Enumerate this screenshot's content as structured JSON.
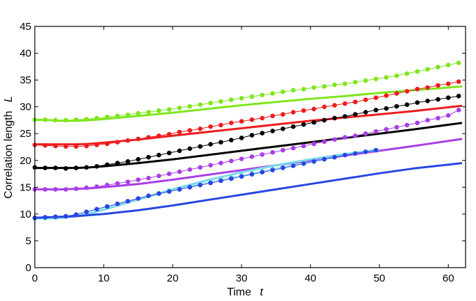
{
  "chart_data": {
    "type": "line",
    "xlabel": "Time",
    "xlabel_symbol": "t",
    "ylabel": "Correlation length",
    "ylabel_symbol": "L",
    "xlim": [
      0,
      62.5
    ],
    "ylim": [
      0,
      45
    ],
    "xticks": [
      0,
      10,
      20,
      30,
      40,
      50,
      60
    ],
    "yticks": [
      0,
      5,
      10,
      15,
      20,
      25,
      30,
      35,
      40,
      45
    ],
    "grid": false,
    "series": [
      {
        "color": "#7fe61e",
        "curve": {
          "x": [
            0,
            2,
            4,
            6,
            8,
            10,
            15,
            20,
            25,
            30,
            35,
            40,
            45,
            50,
            55,
            62
          ],
          "y": [
            27.6,
            27.5,
            27.4,
            27.4,
            27.5,
            27.7,
            28.3,
            28.9,
            29.6,
            30.3,
            30.9,
            31.5,
            32.0,
            32.6,
            33.1,
            33.8
          ]
        },
        "points": {
          "x": [
            0,
            1.5,
            3,
            4.5,
            6,
            7.5,
            9,
            10.5,
            12,
            13.5,
            15,
            16.5,
            18,
            19.5,
            21,
            22.5,
            24,
            25.5,
            27,
            28.5,
            30,
            31.5,
            33,
            34.5,
            36,
            37.5,
            39,
            40.5,
            42,
            43.5,
            45,
            46.5,
            48,
            49.5,
            51,
            52.5,
            54,
            55.5,
            57,
            58.5,
            60,
            61.5
          ],
          "y": [
            27.6,
            27.6,
            27.5,
            27.5,
            27.6,
            27.7,
            27.9,
            28.1,
            28.3,
            28.5,
            28.8,
            29.0,
            29.3,
            29.5,
            29.8,
            30.1,
            30.4,
            30.7,
            31.0,
            31.3,
            31.6,
            31.9,
            32.2,
            32.5,
            32.8,
            33.1,
            33.3,
            33.6,
            33.8,
            34.1,
            34.3,
            34.6,
            34.9,
            35.2,
            35.5,
            35.8,
            36.2,
            36.6,
            37.0,
            37.4,
            37.8,
            38.2
          ]
        }
      },
      {
        "color": "#ee1c1c",
        "curve": {
          "x": [
            0,
            2,
            4,
            6,
            8,
            10,
            15,
            20,
            25,
            30,
            35,
            40,
            45,
            50,
            55,
            62
          ],
          "y": [
            23.0,
            23.0,
            23.0,
            23.0,
            23.1,
            23.3,
            23.9,
            24.6,
            25.3,
            26.0,
            26.7,
            27.4,
            28.0,
            28.6,
            29.2,
            30.2
          ]
        },
        "points": {
          "x": [
            0,
            1.5,
            3,
            4.5,
            6,
            7.5,
            9,
            10.5,
            12,
            13.5,
            15,
            16.5,
            18,
            19.5,
            21,
            22.5,
            24,
            25.5,
            27,
            28.5,
            30,
            31.5,
            33,
            34.5,
            36,
            37.5,
            39,
            40.5,
            42,
            43.5,
            45,
            46.5,
            48,
            49.5,
            51,
            52.5,
            54,
            55.5,
            57,
            58.5,
            60,
            61.5
          ],
          "y": [
            22.9,
            22.8,
            22.7,
            22.6,
            22.6,
            22.7,
            22.9,
            23.1,
            23.4,
            23.7,
            24.0,
            24.3,
            24.6,
            24.9,
            25.3,
            25.6,
            25.9,
            26.3,
            26.6,
            27.0,
            27.3,
            27.6,
            27.9,
            28.3,
            28.6,
            29.0,
            29.3,
            29.6,
            30.0,
            30.3,
            30.6,
            30.9,
            31.3,
            31.7,
            32.1,
            32.5,
            32.9,
            33.3,
            33.6,
            34.0,
            34.3,
            34.7
          ]
        }
      },
      {
        "color": "#000000",
        "curve": {
          "x": [
            0,
            2,
            4,
            6,
            8,
            10,
            15,
            20,
            25,
            30,
            35,
            40,
            45,
            50,
            55,
            62
          ],
          "y": [
            18.6,
            18.6,
            18.6,
            18.6,
            18.7,
            18.9,
            19.5,
            20.2,
            21.0,
            21.8,
            22.6,
            23.4,
            24.2,
            25.0,
            25.8,
            27.0
          ]
        },
        "points": {
          "x": [
            0,
            1.5,
            3,
            4.5,
            6,
            7.5,
            9,
            10.5,
            12,
            13.5,
            15,
            16.5,
            18,
            19.5,
            21,
            22.5,
            24,
            25.5,
            27,
            28.5,
            30,
            31.5,
            33,
            34.5,
            36,
            37.5,
            39,
            40.5,
            42,
            43.5,
            45,
            46.5,
            48,
            49.5,
            51,
            52.5,
            54,
            55.5,
            57,
            58.5,
            60,
            61.5
          ],
          "y": [
            18.7,
            18.6,
            18.6,
            18.5,
            18.6,
            18.7,
            18.9,
            19.2,
            19.5,
            19.8,
            20.2,
            20.6,
            21.0,
            21.4,
            21.8,
            22.2,
            22.6,
            23.0,
            23.4,
            23.8,
            24.2,
            24.7,
            25.1,
            25.5,
            25.9,
            26.3,
            26.7,
            27.1,
            27.5,
            27.9,
            28.2,
            28.6,
            29.0,
            29.4,
            29.7,
            30.1,
            30.4,
            30.8,
            31.1,
            31.4,
            31.7,
            32.0
          ]
        }
      },
      {
        "color": "#a93ee6",
        "curve": {
          "x": [
            0,
            2,
            4,
            6,
            8,
            10,
            15,
            20,
            25,
            30,
            35,
            40,
            45,
            50,
            55,
            62
          ],
          "y": [
            14.6,
            14.6,
            14.6,
            14.7,
            14.8,
            15.0,
            15.6,
            16.4,
            17.3,
            18.2,
            19.1,
            20.0,
            20.9,
            21.8,
            22.7,
            24.0
          ]
        },
        "points": {
          "x": [
            0,
            1.5,
            3,
            4.5,
            6,
            7.5,
            9,
            10.5,
            12,
            13.5,
            15,
            16.5,
            18,
            19.5,
            21,
            22.5,
            24,
            25.5,
            27,
            28.5,
            30,
            31.5,
            33,
            34.5,
            36,
            37.5,
            39,
            40.5,
            42,
            43.5,
            45,
            46.5,
            48,
            49.5,
            51,
            52.5,
            54,
            55.5,
            57,
            58.5,
            60,
            61.5
          ],
          "y": [
            14.6,
            14.6,
            14.6,
            14.6,
            14.7,
            14.9,
            15.1,
            15.4,
            15.7,
            16.0,
            16.4,
            16.7,
            17.1,
            17.5,
            17.9,
            18.3,
            18.7,
            19.1,
            19.5,
            19.9,
            20.3,
            20.7,
            21.1,
            21.5,
            21.9,
            22.3,
            22.7,
            23.1,
            23.5,
            23.9,
            24.3,
            24.6,
            25.0,
            25.4,
            25.8,
            26.2,
            26.6,
            27.0,
            27.5,
            27.9,
            28.4,
            29.4
          ]
        }
      },
      {
        "color": "#7ad8e8",
        "curve": {
          "x": [
            0,
            2,
            4,
            6,
            8,
            10,
            15,
            20,
            25,
            30,
            35,
            40,
            45,
            50
          ],
          "y": [
            9.2,
            9.2,
            9.3,
            9.6,
            10.1,
            10.8,
            12.7,
            14.6,
            16.3,
            17.8,
            19.1,
            20.2,
            21.2,
            22.0
          ]
        },
        "points": {
          "x": [
            0,
            1.5,
            3,
            4.5,
            6,
            7.5,
            9,
            10.5,
            12,
            13.5,
            15,
            16.5,
            18,
            19.5,
            21,
            22.5,
            24,
            25.5,
            27,
            28.5,
            30,
            31.5,
            33,
            34.5,
            36,
            37.5,
            39,
            40.5,
            42,
            43.5,
            45,
            46.5,
            48,
            49.5
          ],
          "y": [
            9.2,
            9.2,
            9.3,
            9.5,
            9.9,
            10.4,
            10.9,
            11.4,
            11.9,
            12.4,
            12.9,
            13.4,
            13.9,
            14.4,
            14.8,
            15.2,
            15.6,
            16.0,
            16.4,
            16.8,
            17.2,
            17.6,
            18.0,
            18.4,
            18.8,
            19.2,
            19.5,
            19.9,
            20.3,
            20.6,
            21.0,
            21.3,
            21.6,
            21.9
          ]
        }
      },
      {
        "color": "#2747e3",
        "curve": {
          "x": [
            0,
            2,
            4,
            6,
            8,
            10,
            15,
            20,
            25,
            30,
            35,
            40,
            45,
            50,
            55,
            62
          ],
          "y": [
            9.3,
            9.4,
            9.5,
            9.6,
            9.8,
            10.0,
            10.7,
            11.6,
            12.6,
            13.6,
            14.6,
            15.6,
            16.6,
            17.6,
            18.5,
            19.5
          ]
        },
        "points": {
          "x": [
            0,
            1.5,
            3,
            4.5,
            6,
            7.5,
            9,
            10.5,
            12,
            13.5,
            15,
            16.5,
            18,
            19.5,
            21,
            22.5,
            24,
            25.5,
            27,
            28.5,
            30,
            31.5,
            33,
            34.5,
            36,
            37.5,
            39,
            40.5,
            42,
            43.5,
            45,
            46.5,
            48,
            49.5
          ],
          "y": [
            9.3,
            9.4,
            9.5,
            9.6,
            9.9,
            10.4,
            10.9,
            11.4,
            11.9,
            12.4,
            12.9,
            13.4,
            13.8,
            14.2,
            14.6,
            15.0,
            15.4,
            15.8,
            16.2,
            16.6,
            17.0,
            17.4,
            17.8,
            18.2,
            18.6,
            19.0,
            19.4,
            19.8,
            20.2,
            20.6,
            21.0,
            21.3,
            21.6,
            21.9
          ]
        }
      }
    ]
  }
}
